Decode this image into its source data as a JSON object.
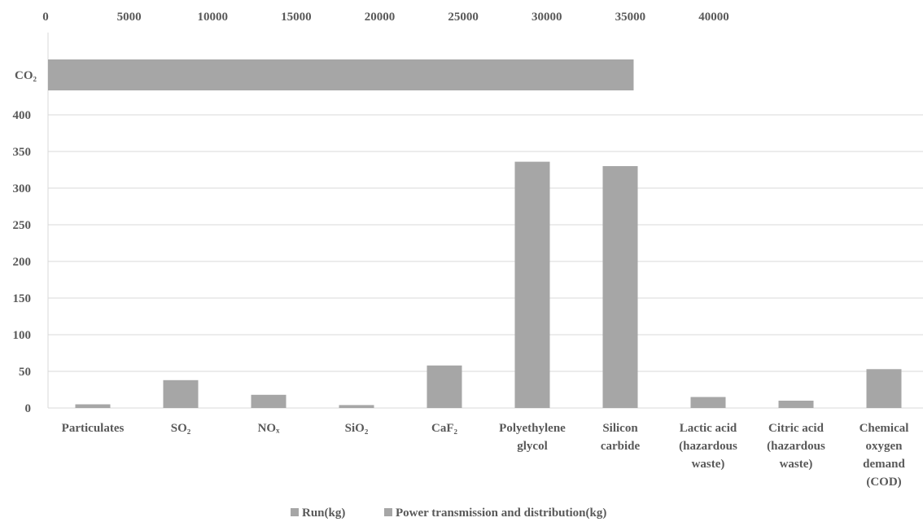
{
  "chart_data": [
    {
      "type": "bar",
      "orientation": "horizontal",
      "categories": [
        "CO₂"
      ],
      "series": [
        {
          "name": "Power transmission and distribution(kg)",
          "values": [
            35200
          ]
        }
      ],
      "x_ticks": [
        "0",
        "5000",
        "10000",
        "15000",
        "20000",
        "25000",
        "30000",
        "35000",
        "40000"
      ],
      "xlim": [
        0,
        40000
      ],
      "axis_position": "top",
      "grid": false,
      "bar_color": "#a6a6a6"
    },
    {
      "type": "bar",
      "orientation": "vertical",
      "categories": [
        [
          "Particulates"
        ],
        [
          "SO₂"
        ],
        [
          "NOₓ"
        ],
        [
          "SiO₂"
        ],
        [
          "CaF₂"
        ],
        [
          "Polyethylene",
          "glycol"
        ],
        [
          "Silicon",
          "carbide"
        ],
        [
          "Lactic acid",
          "(hazardous",
          "waste)"
        ],
        [
          "Citric acid",
          "(hazardous",
          "waste)"
        ],
        [
          "Chemical",
          "oxygen",
          "demand",
          "(COD)"
        ]
      ],
      "series": [
        {
          "name": "Power transmission and distribution(kg)",
          "values": [
            5,
            38,
            18,
            4,
            58,
            336,
            330,
            15,
            10,
            53
          ]
        }
      ],
      "y_ticks": [
        "0",
        "50",
        "100",
        "150",
        "200",
        "250",
        "300",
        "350",
        "400"
      ],
      "ylim": [
        0,
        400
      ],
      "grid": true,
      "bar_color": "#a6a6a6"
    }
  ],
  "legend": {
    "placement": "bottom",
    "items": [
      {
        "label": "Run(kg)",
        "color": "#a6a6a6"
      },
      {
        "label": "Power transmission and distribution(kg)",
        "color": "#a6a6a6"
      }
    ]
  },
  "colors": {
    "bar": "#a6a6a6",
    "grid": "#d9d9d9",
    "axis": "#d9d9d9",
    "text": "#595959"
  }
}
